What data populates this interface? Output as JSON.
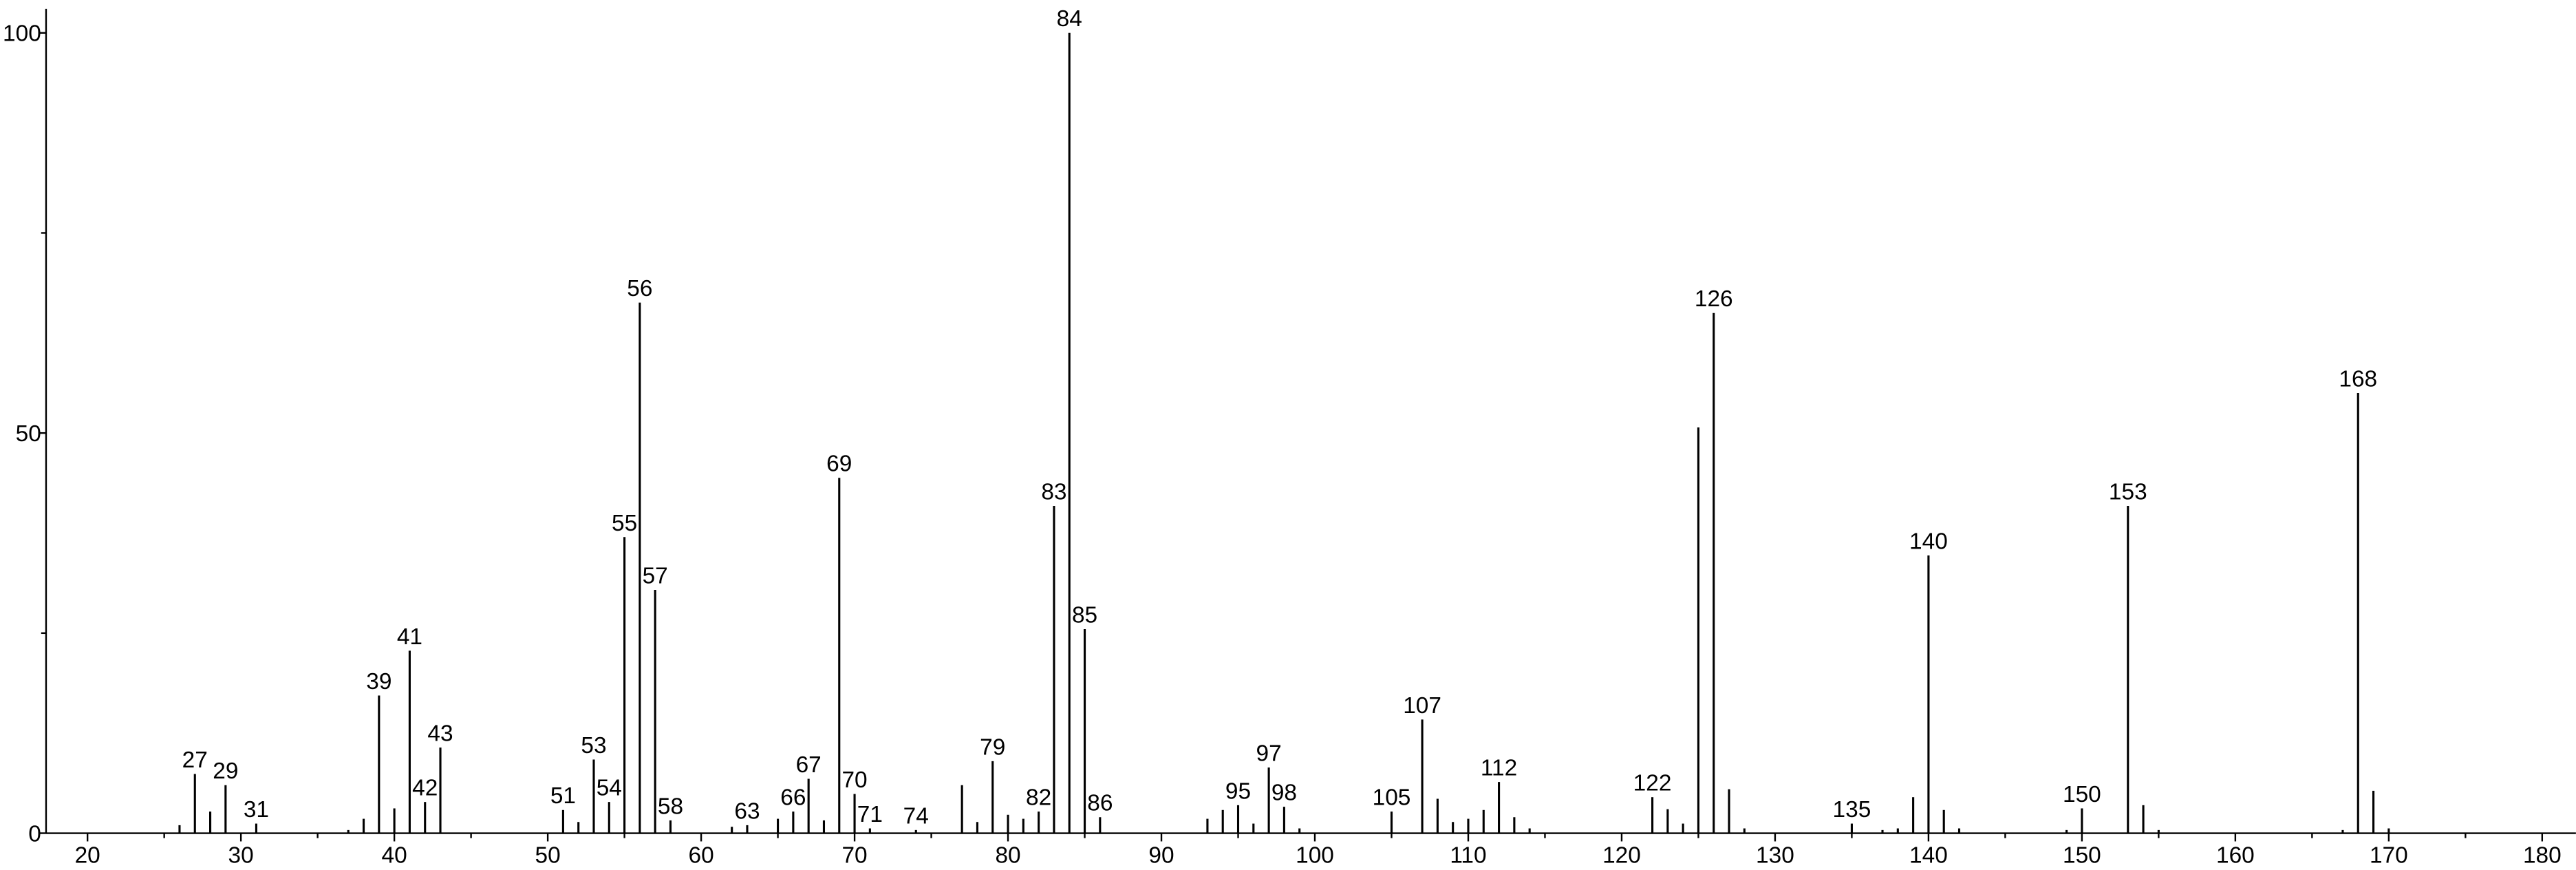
{
  "chart_data": {
    "type": "stem",
    "x": [
      26,
      27,
      28,
      29,
      31,
      37,
      38,
      39,
      40,
      41,
      42,
      43,
      51,
      52,
      53,
      54,
      55,
      56,
      57,
      58,
      62,
      63,
      65,
      66,
      67,
      68,
      69,
      70,
      71,
      74,
      77,
      78,
      79,
      80,
      81,
      82,
      83,
      84,
      85,
      86,
      93,
      94,
      95,
      96,
      97,
      98,
      99,
      105,
      107,
      108,
      109,
      110,
      111,
      112,
      113,
      114,
      122,
      123,
      124,
      125,
      126,
      127,
      128,
      135,
      137,
      138,
      139,
      140,
      141,
      142,
      149,
      150,
      153,
      154,
      155,
      167,
      168,
      169,
      170
    ],
    "values": [
      1,
      7.4,
      2.7,
      6,
      1.2,
      0.4,
      1.8,
      17.2,
      3.1,
      22.8,
      3.9,
      10.7,
      2.9,
      1.4,
      9.2,
      3.9,
      37,
      66.3,
      30.4,
      1.6,
      0.8,
      1,
      1.8,
      2.7,
      6.8,
      1.6,
      44.4,
      4.9,
      0.6,
      0.4,
      6,
      1.4,
      9,
      2.3,
      1.8,
      2.7,
      40.9,
      100,
      25.5,
      2,
      1.8,
      2.9,
      3.5,
      1.2,
      8.2,
      3.3,
      0.6,
      2.7,
      14.2,
      4.3,
      1.4,
      1.8,
      2.9,
      6.4,
      2,
      0.6,
      4.5,
      3,
      1.2,
      50.7,
      65,
      5.5,
      0.6,
      1.2,
      0.4,
      0.6,
      4.5,
      34.7,
      2.9,
      0.6,
      0.4,
      3.1,
      40.9,
      3.5,
      0.4,
      0.4,
      55,
      5.3,
      0.6
    ],
    "show_label": [
      false,
      true,
      false,
      true,
      true,
      false,
      false,
      true,
      false,
      true,
      true,
      true,
      true,
      false,
      true,
      true,
      true,
      true,
      true,
      true,
      false,
      true,
      false,
      true,
      true,
      false,
      true,
      true,
      true,
      true,
      false,
      false,
      true,
      false,
      false,
      true,
      true,
      true,
      true,
      true,
      false,
      false,
      true,
      false,
      true,
      true,
      false,
      true,
      true,
      false,
      false,
      false,
      false,
      true,
      false,
      false,
      true,
      false,
      false,
      false,
      true,
      false,
      false,
      true,
      false,
      false,
      false,
      true,
      false,
      false,
      false,
      true,
      true,
      false,
      false,
      false,
      true,
      false,
      false
    ],
    "color": "#000000",
    "xlim": [
      17.3,
      182.2
    ],
    "xticks": [
      20,
      30,
      40,
      50,
      60,
      70,
      80,
      90,
      100,
      110,
      120,
      130,
      140,
      150,
      160,
      170,
      180
    ],
    "xminorticks": [
      25,
      35,
      45,
      55,
      65,
      75,
      85,
      95,
      105,
      115,
      125,
      135,
      145,
      155,
      165,
      175
    ],
    "ylim": [
      0,
      103
    ],
    "yticks": [
      0,
      50,
      100
    ],
    "yminorticks": [
      25,
      75
    ]
  }
}
